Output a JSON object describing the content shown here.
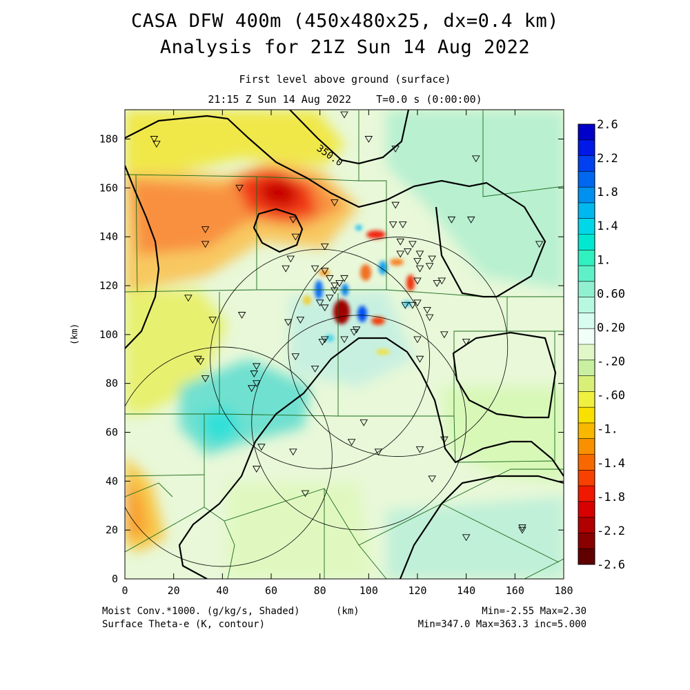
{
  "title_line1": "CASA DFW 400m (450x480x25, dx=0.4 km)",
  "title_line2": "Analysis for 21Z Sun 14 Aug 2022",
  "subtitle_line1": "First level above ground (surface)",
  "subtitle_line2": "21:15 Z Sun 14 Aug 2022    T=0.0 s (0:00:00)",
  "footer": {
    "left_line1": "Moist Conv.*1000. (g/kg/s, Shaded)",
    "left_line2": "Surface Theta-e (K, contour)",
    "xunit": "(km)",
    "right_line1": "Min=-2.55 Max=2.30",
    "right_line2": "Min=347.0 Max=363.3 inc=5.000"
  },
  "chart_data": {
    "type": "heatmap",
    "xlabel": "(km)",
    "ylabel": "(km)",
    "xlim": [
      0,
      180
    ],
    "ylim": [
      0,
      192
    ],
    "xticks": [
      0,
      20,
      40,
      60,
      80,
      100,
      120,
      140,
      160,
      180
    ],
    "yticks": [
      0,
      20,
      40,
      60,
      80,
      100,
      120,
      140,
      160,
      180
    ],
    "contour_label": "350.0",
    "shaded_field": "Moist Conv.*1000. (g/kg/s)",
    "contour_field": "Surface Theta-e (K)",
    "shaded_min": -2.55,
    "shaded_max": 2.3,
    "contour_min": 347.0,
    "contour_max": 363.3,
    "contour_inc": 5.0,
    "colorbar_labels": [
      "2.6",
      "2.2",
      "1.8",
      "1.4",
      "1.",
      "0.60",
      "0.20",
      "-.20",
      "-.60",
      "-1.",
      "-1.4",
      "-1.8",
      "-2.2",
      "-2.6"
    ],
    "colorbar_colors": [
      "#0000c8",
      "#0018e8",
      "#0040f0",
      "#0068f0",
      "#0090f0",
      "#00b8f0",
      "#00d8e8",
      "#00e8d0",
      "#30f0c0",
      "#60f0c8",
      "#90f0d0",
      "#b8f8e0",
      "#d8fcf0",
      "#f0fff8",
      "#e0f8c8",
      "#c8f0a0",
      "#d8f078",
      "#f0f040",
      "#f8e000",
      "#f8b800",
      "#f89000",
      "#f86800",
      "#f84000",
      "#f01800",
      "#d80000",
      "#b00000",
      "#880000",
      "#600000"
    ],
    "radar_rings": [
      {
        "x": 112,
        "y": 95,
        "r": 45
      },
      {
        "x": 96,
        "y": 64,
        "r": 44
      },
      {
        "x": 80,
        "y": 90,
        "r": 45
      },
      {
        "x": 40,
        "y": 50,
        "r": 45
      }
    ],
    "stations": [
      [
        12,
        180
      ],
      [
        13,
        178
      ],
      [
        33,
        143
      ],
      [
        33,
        137
      ],
      [
        26,
        115
      ],
      [
        36,
        106
      ],
      [
        30,
        90
      ],
      [
        31,
        89
      ],
      [
        33,
        82
      ],
      [
        48,
        108
      ],
      [
        47,
        160
      ],
      [
        54,
        87
      ],
      [
        53,
        84
      ],
      [
        54,
        80
      ],
      [
        52,
        78
      ],
      [
        56,
        54
      ],
      [
        54,
        45
      ],
      [
        69,
        147
      ],
      [
        70,
        140
      ],
      [
        68,
        131
      ],
      [
        66,
        127
      ],
      [
        67,
        105
      ],
      [
        72,
        106
      ],
      [
        70,
        91
      ],
      [
        78,
        86
      ],
      [
        74,
        35
      ],
      [
        69,
        52
      ],
      [
        86,
        154
      ],
      [
        82,
        136
      ],
      [
        78,
        127
      ],
      [
        82,
        126
      ],
      [
        84,
        123
      ],
      [
        86,
        120
      ],
      [
        86,
        118
      ],
      [
        88,
        121
      ],
      [
        90,
        123
      ],
      [
        84,
        115
      ],
      [
        80,
        113
      ],
      [
        82,
        111
      ],
      [
        82,
        98
      ],
      [
        81,
        97
      ],
      [
        90,
        98
      ],
      [
        94,
        101
      ],
      [
        95,
        102
      ],
      [
        98,
        64
      ],
      [
        93,
        56
      ],
      [
        90,
        190
      ],
      [
        100,
        180
      ],
      [
        104,
        52
      ],
      [
        110,
        145
      ],
      [
        113,
        138
      ],
      [
        113,
        133
      ],
      [
        116,
        134
      ],
      [
        118,
        137
      ],
      [
        114,
        145
      ],
      [
        111,
        153
      ],
      [
        111,
        176
      ],
      [
        120,
        130
      ],
      [
        121,
        133
      ],
      [
        125,
        128
      ],
      [
        126,
        131
      ],
      [
        128,
        121
      ],
      [
        130,
        122
      ],
      [
        121,
        127
      ],
      [
        120,
        122
      ],
      [
        118,
        112
      ],
      [
        115,
        112
      ],
      [
        120,
        113
      ],
      [
        124,
        110
      ],
      [
        125,
        107
      ],
      [
        120,
        98
      ],
      [
        121,
        90
      ],
      [
        121,
        53
      ],
      [
        126,
        41
      ],
      [
        131,
        57
      ],
      [
        131,
        100
      ],
      [
        140,
        97
      ],
      [
        134,
        147
      ],
      [
        142,
        147
      ],
      [
        144,
        172
      ],
      [
        140,
        17
      ],
      [
        163,
        21
      ],
      [
        163,
        20
      ],
      [
        170,
        137
      ]
    ]
  }
}
